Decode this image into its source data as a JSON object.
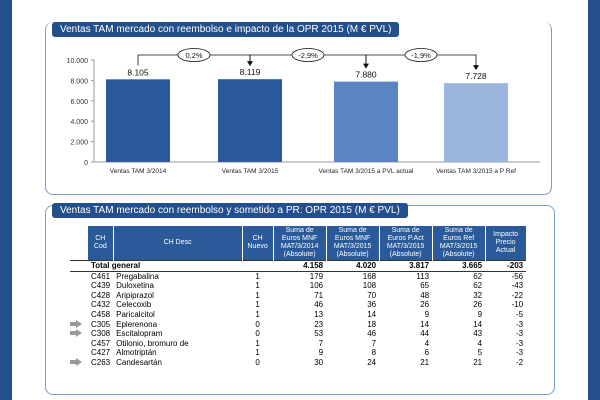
{
  "chart_data": {
    "type": "bar",
    "title": "Ventas TAM mercado con reembolso e impacto de la OPR 2015 (M € PVL)",
    "categories": [
      "Ventas TAM 3/2014",
      "Ventas TAM 3/2015",
      "Ventas TAM 3/2015 a PVL actual",
      "Ventas TAM 3/2015 a P Ref"
    ],
    "values": [
      8105,
      8119,
      7880,
      7728
    ],
    "value_labels": [
      "8.105",
      "8.119",
      "7.880",
      "7.728"
    ],
    "bar_colors": [
      "#2a5a99",
      "#2a5a99",
      "#5b84c4",
      "#9ab6dc"
    ],
    "changes": [
      "0,2%",
      "-2,9%",
      "-1,9%"
    ],
    "ylim": [
      0,
      10000
    ],
    "yticks": [
      0,
      2000,
      4000,
      6000,
      8000,
      10000
    ],
    "ytick_labels": [
      "0",
      "2.000",
      "4.000",
      "6.000",
      "8.000",
      "10.000"
    ],
    "grid": false,
    "xlabel": "",
    "ylabel": ""
  },
  "table": {
    "title": "Ventas TAM mercado con reembolso y sometido a PR: OPR 2015 (M € PVL)",
    "headers": {
      "cod": "CH Cod",
      "desc": "CH Desc",
      "nuevo": "CH Nuevo",
      "mnf2014": "Suma de Euros MNF MAT/3/2014 (Absolute)",
      "mnf2015": "Suma de Euros MNF MAT/3/2015 (Absolute)",
      "pact": "Suma de Euros P.Act MAT/3/2015 (Absolute)",
      "pref": "Suma de Euros Ref MAT/3/2015 (Absolute)",
      "impacto": "Impacto Precio Actual"
    },
    "total": {
      "label": "Total general",
      "mnf2014": "4.158",
      "mnf2015": "4.020",
      "pact": "3.817",
      "pref": "3.665",
      "impacto": "-203"
    },
    "rows": [
      {
        "arrow": false,
        "cod": "C461",
        "desc": "Pregabalina",
        "nuevo": "1",
        "mnf2014": "179",
        "mnf2015": "168",
        "pact": "113",
        "pref": "62",
        "impacto": "-56"
      },
      {
        "arrow": false,
        "cod": "C439",
        "desc": "Duloxetina",
        "nuevo": "1",
        "mnf2014": "106",
        "mnf2015": "108",
        "pact": "65",
        "pref": "62",
        "impacto": "-43"
      },
      {
        "arrow": false,
        "cod": "C428",
        "desc": "Aripiprazol",
        "nuevo": "1",
        "mnf2014": "71",
        "mnf2015": "70",
        "pact": "48",
        "pref": "32",
        "impacto": "-22"
      },
      {
        "arrow": false,
        "cod": "C432",
        "desc": "Celecoxib",
        "nuevo": "1",
        "mnf2014": "46",
        "mnf2015": "36",
        "pact": "26",
        "pref": "26",
        "impacto": "-10"
      },
      {
        "arrow": false,
        "cod": "C458",
        "desc": "Paricalcitol",
        "nuevo": "1",
        "mnf2014": "13",
        "mnf2015": "14",
        "pact": "9",
        "pref": "9",
        "impacto": "-5"
      },
      {
        "arrow": true,
        "cod": "C305",
        "desc": "Eplerenona",
        "nuevo": "0",
        "mnf2014": "23",
        "mnf2015": "18",
        "pact": "14",
        "pref": "14",
        "impacto": "-3"
      },
      {
        "arrow": true,
        "cod": "C308",
        "desc": "Escitalopram",
        "nuevo": "0",
        "mnf2014": "53",
        "mnf2015": "46",
        "pact": "44",
        "pref": "43",
        "impacto": "-3"
      },
      {
        "arrow": false,
        "cod": "C457",
        "desc": "Otilonio, bromuro de",
        "nuevo": "1",
        "mnf2014": "7",
        "mnf2015": "7",
        "pact": "4",
        "pref": "4",
        "impacto": "-3"
      },
      {
        "arrow": false,
        "cod": "C427",
        "desc": "Almotriptán",
        "nuevo": "1",
        "mnf2014": "9",
        "mnf2015": "8",
        "pact": "6",
        "pref": "5",
        "impacto": "-3"
      },
      {
        "arrow": true,
        "cod": "C263",
        "desc": "Candesartán",
        "nuevo": "0",
        "mnf2014": "30",
        "mnf2015": "24",
        "pact": "21",
        "pref": "21",
        "impacto": "-2"
      }
    ]
  }
}
